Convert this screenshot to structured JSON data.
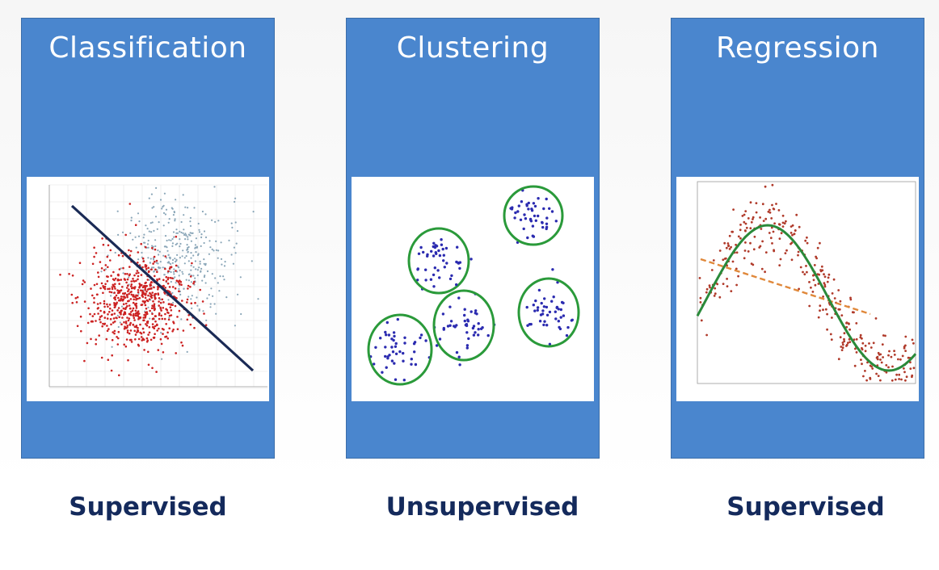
{
  "panels": [
    {
      "title": "Classification",
      "caption": "Supervised",
      "icon": "scatter-classification-plot"
    },
    {
      "title": "Clustering",
      "caption": "Unsupervised",
      "icon": "cluster-plot"
    },
    {
      "title": "Regression",
      "caption": "Supervised",
      "icon": "regression-curve-plot"
    }
  ],
  "colors": {
    "card": "#4a86ce",
    "caption": "#142a5c",
    "class_a": "#cc2222",
    "class_b": "#8aa6b8",
    "boundary": "#1a2a55",
    "cluster_points": "#2b2bb0",
    "cluster_circle": "#2a9a3a",
    "regression_points": "#b03a2a",
    "regression_fit": "#2a8a3a",
    "regression_linear": "#e0883a"
  }
}
